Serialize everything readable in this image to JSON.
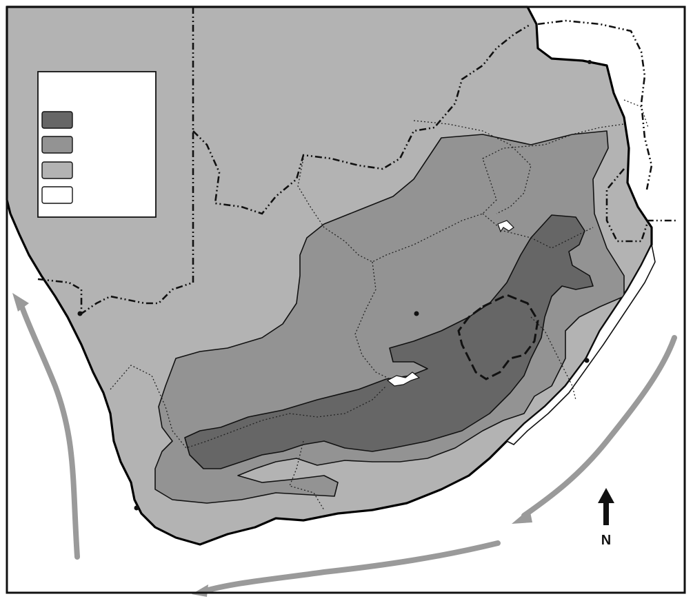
{
  "colors": {
    "land_base": "#b3b3b3",
    "zone_high": "#666666",
    "zone_mid": "#939393",
    "zone_low": "#b3b3b3",
    "zone_none": "#ffffff",
    "ocean": "#ffffff",
    "current": "#9a9a9a"
  },
  "legend": {
    "entries": [
      {
        "color": "#666666"
      },
      {
        "color": "#939393"
      },
      {
        "color": "#b3b3b3"
      },
      {
        "color": "#ffffff"
      }
    ]
  },
  "compass": {
    "label": "N",
    "icon": "north-arrow-icon"
  },
  "features": {
    "ocean_currents": 3,
    "city_markers": 5
  }
}
